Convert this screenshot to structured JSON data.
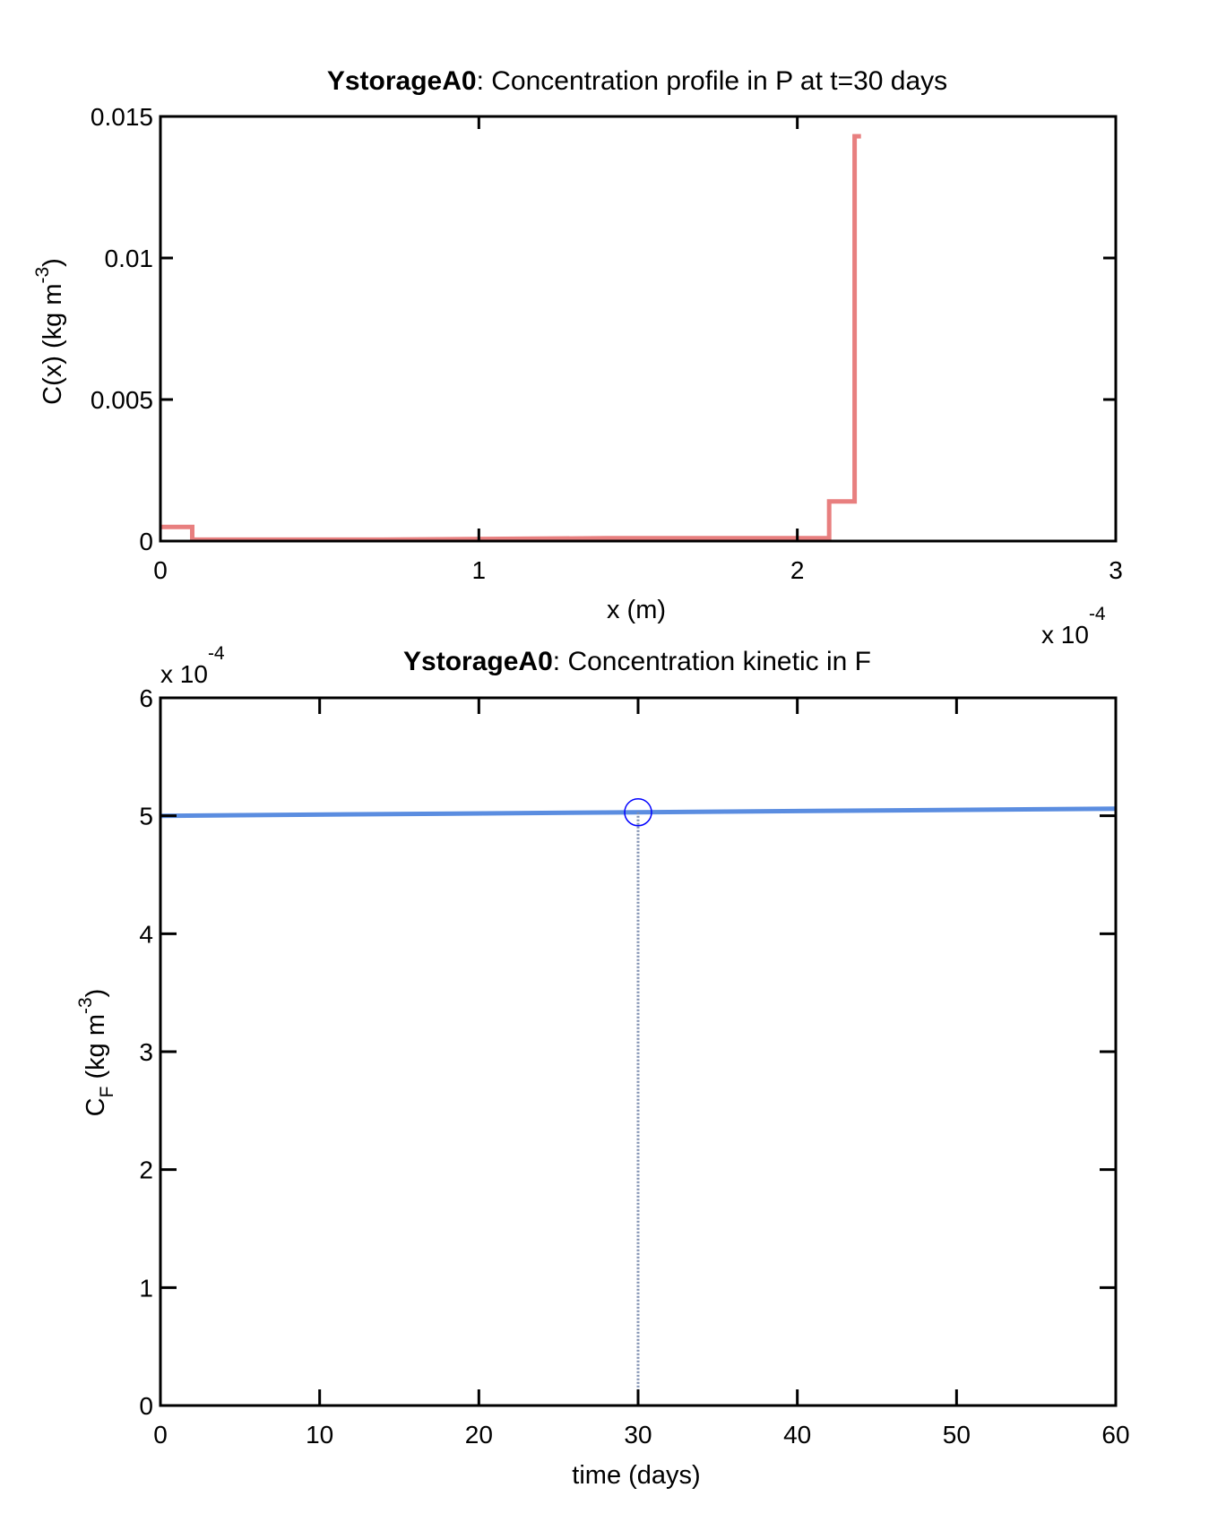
{
  "chart_data": [
    {
      "type": "line",
      "title_bold": "YstorageA0",
      "title_rest": ": Concentration profile in P at t=30 days",
      "xlabel": "x (m)",
      "ylabel": {
        "base": "C(x) (kg m",
        "sup": "-3",
        "close": ")"
      },
      "x_multiplier": {
        "base": "x 10",
        "exp": "-4"
      },
      "xlim": [
        0,
        3
      ],
      "ylim": [
        0,
        0.015
      ],
      "xticks": [
        "0",
        "1",
        "2",
        "3"
      ],
      "yticks": [
        "0",
        "0.005",
        "0.01",
        "0.015"
      ],
      "series": [
        {
          "color": "#e87f7f",
          "points": [
            [
              0,
              0.0005
            ],
            [
              0.1,
              0.0005
            ],
            [
              0.1,
              5e-05
            ],
            [
              0.7,
              5e-05
            ],
            [
              1.4,
              0.0001
            ],
            [
              2.1,
              0.0001
            ],
            [
              2.1,
              0.0014
            ],
            [
              2.18,
              0.0014
            ],
            [
              2.18,
              0.0143
            ],
            [
              2.2,
              0.0143
            ]
          ]
        }
      ]
    },
    {
      "type": "line",
      "title_bold": "YstorageA0",
      "title_rest": ": Concentration kinetic in F",
      "xlabel": "time (days)",
      "ylabel": {
        "base": "C",
        "sub": "F",
        "rest": " (kg m",
        "sup": "-3",
        "close": ")"
      },
      "y_multiplier": {
        "base": "x 10",
        "exp": "-4"
      },
      "xlim": [
        0,
        60
      ],
      "ylim": [
        0,
        6
      ],
      "xticks": [
        "0",
        "10",
        "20",
        "30",
        "40",
        "50",
        "60"
      ],
      "yticks": [
        "0",
        "1",
        "2",
        "3",
        "4",
        "5",
        "6"
      ],
      "series": [
        {
          "color": "#5b8de0",
          "points": [
            [
              0,
              5.0
            ],
            [
              30,
              5.03
            ],
            [
              60,
              5.06
            ]
          ]
        }
      ],
      "marker": {
        "x": 30,
        "y": 5.03,
        "color": "#0000ff"
      },
      "marker_dropline": true
    }
  ]
}
